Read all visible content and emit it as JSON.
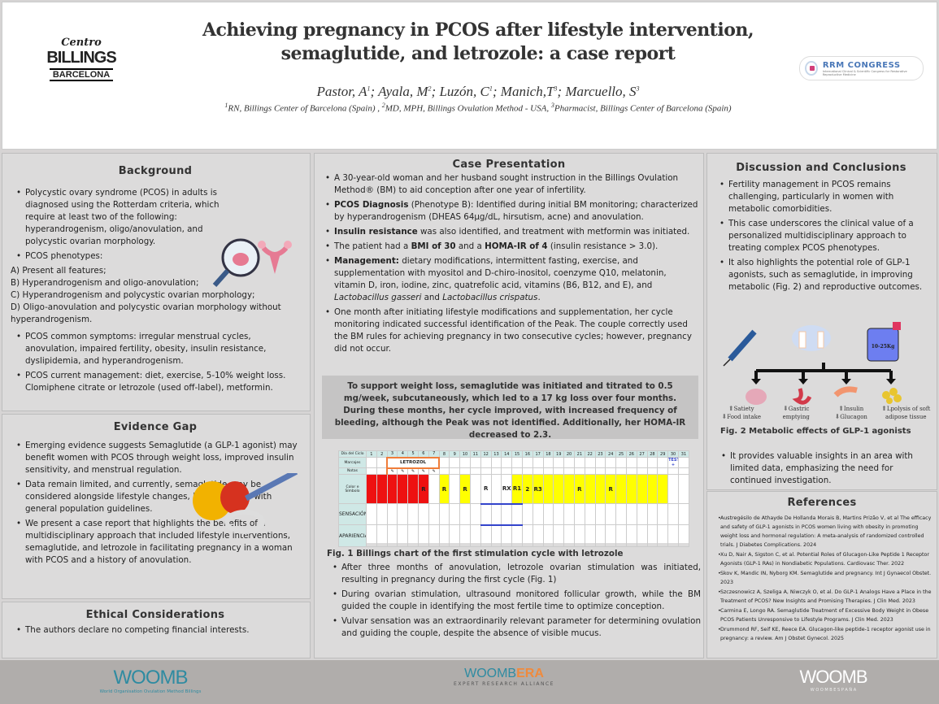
{
  "header": {
    "title_line1": "Achieving pregnancy in PCOS after lifestyle intervention,",
    "title_line2": "semaglutide, and letrozole: a case report",
    "authors": [
      {
        "name": "Pastor, A",
        "sup": "1"
      },
      {
        "name": "Ayala, M",
        "sup": "2"
      },
      {
        "name": "Luzón, C",
        "sup": "1"
      },
      {
        "name": "Manich,T",
        "sup": "3"
      },
      {
        "name": "Marcuello, S",
        "sup": "3"
      }
    ],
    "affiliations": [
      {
        "sup": "1",
        "text": "RN, Billings Center of Barcelona (Spain) , "
      },
      {
        "sup": "2",
        "text": "MD, MPH, Billings Ovulation Method - USA, "
      },
      {
        "sup": "3",
        "text": "Pharmacist, Billings Center of Barcelona (Spain)"
      }
    ],
    "logo_left": {
      "line1": "Centro",
      "line2": "BILLINGS",
      "line3": "BARCELONA"
    },
    "logo_right": {
      "name": "RRM CONGRESS",
      "sub": "International Clinical & Scientific Congress for Restorative Reproductive Medicine"
    }
  },
  "background": {
    "title": "Background",
    "items1": [
      [
        {
          "t": "Polycystic ovary syndrome (PCOS) in adults is diagnosed using the Rotterdam criteria, which require at least two of the following: hyperandrogenism, oligo/anovulation, and polycystic ovarian morphology."
        }
      ],
      [
        {
          "t": "PCOS phenotypes:"
        }
      ]
    ],
    "phenotypes": [
      "A) Present all features;",
      "B) Hyperandrogenism and oligo-anovulation;",
      "C) Hyperandrogenism and polycystic ovarian morphology;",
      "D) Oligo-anovulation and polycystic ovarian morphology without hyperandrogenism."
    ],
    "items2": [
      [
        {
          "t": "PCOS common symptoms: irregular menstrual cycles, anovulation, impaired fertility, obesity, insulin resistance, dyslipidemia, and hyperandrogenism."
        }
      ],
      [
        {
          "t": "PCOS current management: diet, exercise, 5-10% weight loss. Clomiphene citrate or letrozole (used off-label), metformin."
        }
      ]
    ]
  },
  "evidence": {
    "title": "Evidence Gap",
    "items": [
      [
        {
          "t": "Emerging evidence suggests Semaglutide (a GLP-1 agonist) may benefit women with PCOS through weight loss, improved insulin sensitivity, and menstrual regulation."
        }
      ],
      [
        {
          "t": "Data remain limited, and currently, semaglutide may be considered alongside lifestyle changes, in accordance with general population guidelines."
        }
      ],
      [
        {
          "t": "We present a case report that highlights the benefits of a multidisciplinary approach that included lifestyle interventions, semaglutide, and letrozole in facilitating pregnancy in a woman with PCOS and a history of anovulation."
        }
      ]
    ]
  },
  "ethical": {
    "title": "Ethical Considerations",
    "items": [
      [
        {
          "t": "The authors declare no competing financial interests."
        }
      ]
    ]
  },
  "case": {
    "title": "Case Presentation",
    "items": [
      [
        {
          "t": "A 30-year-old woman and her husband sought instruction in the Billings Ovulation Method® (BM) to aid conception after one year of infertility."
        }
      ],
      [
        {
          "t": "PCOS Diagnosis",
          "b": true
        },
        {
          "t": " (Phenotype B): Identified during initial BM monitoring; characterized by hyperandrogenism (DHEAS 64µg/dL, hirsutism, acne) and anovulation."
        }
      ],
      [
        {
          "t": "Insulin resistance",
          "b": true
        },
        {
          "t": " was also identified, and treatment with metformin was initiated."
        }
      ],
      [
        {
          "t": "The patient had a "
        },
        {
          "t": "BMI of 30",
          "b": true
        },
        {
          "t": " and a "
        },
        {
          "t": "HOMA-IR of 4",
          "b": true
        },
        {
          "t": " (insulin resistance > 3.0)."
        }
      ],
      [
        {
          "t": "Management:",
          "b": true
        },
        {
          "t": " dietary modifications, intermittent fasting, exercise, and supplementation with myositol and D-chiro-inositol, coenzyme Q10, melatonin, vitamin D, iron, iodine, zinc, quatrefolic acid, vitamins (B6, B12, and E), and "
        },
        {
          "t": "Lactobacillus gasseri",
          "i": true
        },
        {
          "t": " and "
        },
        {
          "t": "Lactobacillus crispatus",
          "i": true
        },
        {
          "t": "."
        }
      ],
      [
        {
          "t": "One month after initiating lifestyle modifications and supplementation, her cycle monitoring indicated successful identification of the Peak. The couple correctly used the BM rules for achieving pregnancy in two consecutive cycles; however, pregnancy did not occur."
        }
      ]
    ],
    "highlight": "To support weight loss, semaglutide was initiated and titrated to 0.5 mg/week, subcutaneously, which led to a 17 kg loss over four months. During these months, her cycle improved, with increased frequency of bleeding, although the Peak was not identified. Additionally, her HOMA-IR decreased to 2.3.",
    "fig1_caption": "Fig. 1  Billings chart of the first stimulation cycle with letrozole",
    "items2": [
      [
        {
          "t": "After three months of anovulation, letrozole ovarian stimulation was initiated, resulting in pregnancy during the first cycle (Fig. 1)"
        }
      ],
      [
        {
          "t": "During ovarian stimulation, ultrasound monitored follicular growth, while the BM guided the couple in identifying the most fertile time to optimize conception."
        }
      ],
      [
        {
          "t": "Vulvar sensation was an extraordinarily relevant parameter for determining ovulation and guiding the couple, despite the absence of visible mucus."
        }
      ]
    ]
  },
  "chart": {
    "row_labels": [
      "Día del Ciclo",
      "Marcajes",
      "Notas",
      "Color e Símbolo",
      "SENSACIÓN",
      "APARIENCIA"
    ],
    "letrozol": "LETROZOL",
    "test": "TEST +",
    "days": 31,
    "colors": [
      "red",
      "red",
      "red",
      "red",
      "red",
      "red",
      "white",
      "yellow",
      "white",
      "yellow",
      "white",
      "white",
      "white",
      "white",
      "yellow",
      "yellow",
      "yellow",
      "yellow",
      "yellow",
      "yellow",
      "yellow",
      "yellow",
      "yellow",
      "yellow",
      "yellow",
      "yellow",
      "yellow",
      "yellow",
      "yellow",
      "white",
      "white"
    ],
    "marks": [
      "",
      "",
      "",
      "",
      "",
      "R",
      "",
      "R",
      "",
      "R",
      "",
      "R",
      "",
      "RX",
      "R1",
      "2",
      "R3",
      "",
      "",
      "",
      "R",
      "",
      "",
      "R",
      "",
      "",
      "",
      "",
      "",
      "",
      ""
    ],
    "color_values": {
      "red": "#ee1111",
      "yellow": "#ffff00",
      "white": "#ffffff",
      "header": "#cfe8e6"
    }
  },
  "discussion": {
    "title": "Discussion and Conclusions",
    "items": [
      [
        {
          "t": "Fertility management in PCOS remains challenging, particularly in women with metabolic comorbidities."
        }
      ],
      [
        {
          "t": "This case underscores the clinical value of a personalized multidisciplinary approach to treating complex PCOS phenotypes."
        }
      ],
      [
        {
          "t": "It also highlights the potential role of GLP-1 agonists, such as semaglutide, in improving metabolic (Fig. 2) and reproductive outcomes."
        }
      ]
    ],
    "fig2": {
      "scale": "10-25Kg",
      "effects": [
        [
          "Satiety",
          "Food intake"
        ],
        [
          "Gastric emptying"
        ],
        [
          "Insulin",
          "Glucagon"
        ],
        [
          "Lpolysis of soft adipose tissue"
        ]
      ],
      "caption": "Fig. 2  Metabolic effects of GLP-1 agonists"
    },
    "items2": [
      [
        {
          "t": "It provides valuable insights in an area with limited data, emphasizing the need for continued investigation."
        }
      ]
    ]
  },
  "references": {
    "title": "References",
    "items": [
      "Austregésilo de Athayde De Hollanda Morais B, Martins Prizão V, et al The efficacy and safety of GLP-1 agonists in PCOS women living with obesity in promoting weight loss and hormonal regulation: A meta-analysis of randomized controlled trials. J Diabetes Complications. 2024",
      "Xu D, Nair A, Sigston C, et al. Potential Roles of Glucagon-Like Peptide 1 Receptor Agonists (GLP-1 RAs) in Nondiabetic Populations. Cardiovasc Ther. 2022",
      "Skov K, Mandic IN, Nyborg KM. Semaglutide and pregnancy. Int J Gynaecol Obstet. 2023",
      "Szczesnowicz A, Szeliga A, Niwczyk O, et al. Do GLP-1 Analogs Have a Place in the Treatment of PCOS? New Insights and Promising Therapies. J Clin Med. 2023",
      "Carmina E, Longo RA. Semaglutide Treatment of Excessive Body Weight in Obese PCOS Patients Unresponsive to Lifestyle Programs. J Clin Med. 2023",
      "Drummond RF, Seif KE, Reece EA. Glucagon-like peptide-1 receptor agonist use in pregnancy: a review. Am J Obstet Gynecol. 2025"
    ]
  },
  "footer": {
    "logo1": {
      "mark": "WOOMB",
      "sub": "World Organisation Ovulation Method Billings"
    },
    "logo2": {
      "mark": "WOOMB",
      "accent": "ERA",
      "sub": "EXPERT RESEARCH ALLIANCE"
    },
    "logo3": {
      "mark": "WOOMB",
      "sub": "W O O M B  E S P A Ñ A"
    }
  }
}
